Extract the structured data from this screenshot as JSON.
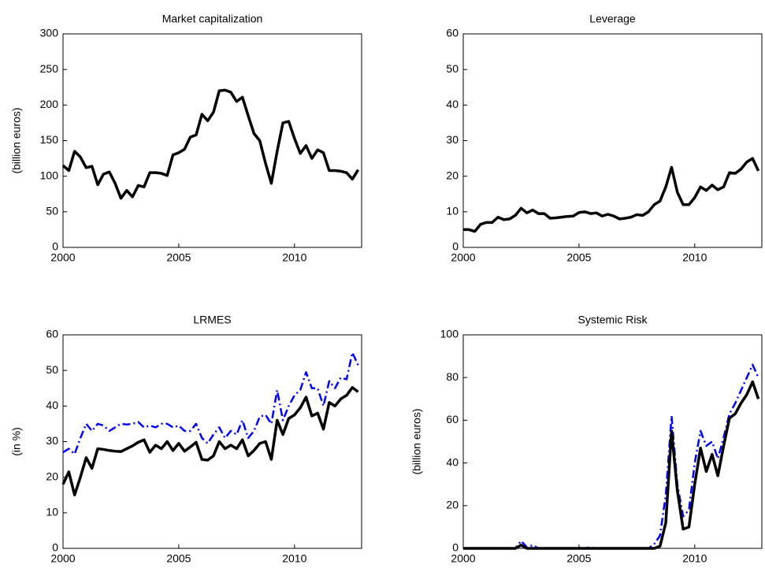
{
  "chart_data": [
    {
      "type": "line",
      "title": "Market capitalization",
      "ylabel": "(billion euros)",
      "x": [
        2000,
        2000.25,
        2000.5,
        2000.75,
        2001,
        2001.25,
        2001.5,
        2001.75,
        2002,
        2002.25,
        2002.5,
        2002.75,
        2003,
        2003.25,
        2003.5,
        2003.75,
        2004,
        2004.25,
        2004.5,
        2004.75,
        2005,
        2005.25,
        2005.5,
        2005.75,
        2006,
        2006.25,
        2006.5,
        2006.75,
        2007,
        2007.25,
        2007.5,
        2007.75,
        2008,
        2008.25,
        2008.5,
        2008.75,
        2009,
        2009.25,
        2009.5,
        2009.75,
        2010,
        2010.25,
        2010.5,
        2010.75,
        2011,
        2011.25,
        2011.5,
        2011.75,
        2012,
        2012.25,
        2012.5,
        2012.75
      ],
      "values": [
        115,
        108,
        135,
        127,
        112,
        114,
        88,
        103,
        106,
        90,
        69,
        80,
        71,
        87,
        85,
        105,
        105,
        104,
        101,
        130,
        133,
        138,
        155,
        158,
        187,
        178,
        190,
        220,
        221,
        218,
        205,
        211,
        185,
        160,
        150,
        118,
        90,
        135,
        175,
        177,
        153,
        132,
        143,
        125,
        137,
        133,
        108,
        108,
        107,
        105,
        96,
        109
      ],
      "color": "#000000",
      "xlim": [
        2000,
        2012.9
      ],
      "ylim": [
        0,
        300
      ],
      "xticks": [
        2000,
        2005,
        2010
      ],
      "yticks": [
        0,
        50,
        100,
        150,
        200,
        250,
        300
      ]
    },
    {
      "type": "line",
      "title": "Leverage",
      "x": [
        2000,
        2000.25,
        2000.5,
        2000.75,
        2001,
        2001.25,
        2001.5,
        2001.75,
        2002,
        2002.25,
        2002.5,
        2002.75,
        2003,
        2003.25,
        2003.5,
        2003.75,
        2004,
        2004.25,
        2004.5,
        2004.75,
        2005,
        2005.25,
        2005.5,
        2005.75,
        2006,
        2006.25,
        2006.5,
        2006.75,
        2007,
        2007.25,
        2007.5,
        2007.75,
        2008,
        2008.25,
        2008.5,
        2008.75,
        2009,
        2009.25,
        2009.5,
        2009.75,
        2010,
        2010.25,
        2010.5,
        2010.75,
        2011,
        2011.25,
        2011.5,
        2011.75,
        2012,
        2012.25,
        2012.5,
        2012.75
      ],
      "values": [
        5,
        5,
        4.5,
        6.5,
        7,
        7,
        8.5,
        7.8,
        8,
        9,
        11,
        9.7,
        10.5,
        9.5,
        9.5,
        8.2,
        8.3,
        8.5,
        8.7,
        8.8,
        9.8,
        10,
        9.5,
        9.7,
        8.8,
        9.3,
        8.8,
        8,
        8.2,
        8.5,
        9.2,
        9,
        10,
        12,
        13,
        17,
        22.5,
        15.5,
        12,
        12,
        14,
        17,
        16,
        17.5,
        16.2,
        17,
        21,
        20.8,
        22,
        24,
        25,
        21.5
      ],
      "color": "#000000",
      "xlim": [
        2000,
        2012.9
      ],
      "ylim": [
        0,
        60
      ],
      "xticks": [
        2000,
        2005,
        2010
      ],
      "yticks": [
        0,
        10,
        20,
        30,
        40,
        50,
        60
      ]
    },
    {
      "type": "line",
      "title": "LRMES",
      "ylabel": "(in %)",
      "x": [
        2000,
        2000.25,
        2000.5,
        2000.75,
        2001,
        2001.25,
        2001.5,
        2001.75,
        2002,
        2002.25,
        2002.5,
        2002.75,
        2003,
        2003.25,
        2003.5,
        2003.75,
        2004,
        2004.25,
        2004.5,
        2004.75,
        2005,
        2005.25,
        2005.5,
        2005.75,
        2006,
        2006.25,
        2006.5,
        2006.75,
        2007,
        2007.25,
        2007.5,
        2007.75,
        2008,
        2008.25,
        2008.5,
        2008.75,
        2009,
        2009.25,
        2009.5,
        2009.75,
        2010,
        2010.25,
        2010.5,
        2010.75,
        2011,
        2011.25,
        2011.5,
        2011.75,
        2012,
        2012.25,
        2012.5,
        2012.75
      ],
      "series": [
        {
          "color": "#000000",
          "dash": "solid",
          "values": [
            18,
            21.5,
            15,
            20,
            25.5,
            22.5,
            28,
            27.8,
            27.5,
            27.3,
            27.2,
            28,
            28.8,
            29.8,
            30.5,
            27,
            29,
            28,
            30,
            27.5,
            29.5,
            27.3,
            28.5,
            29.8,
            25,
            24.8,
            26,
            30,
            28,
            29,
            28,
            30.5,
            26,
            27.5,
            29.5,
            30,
            25,
            36,
            32,
            36.5,
            37.5,
            39.5,
            42.5,
            37.2,
            38,
            33.5,
            41,
            40,
            42,
            43,
            45.2,
            44
          ]
        },
        {
          "color": "#0000ff",
          "dash": "dashdot",
          "values": [
            27,
            28,
            26.5,
            31,
            35,
            33,
            35,
            34.5,
            33,
            34,
            35,
            34.8,
            35,
            35.5,
            34,
            34.5,
            34,
            35,
            35,
            34,
            34.5,
            33,
            33,
            35,
            31,
            29.5,
            32,
            34,
            31,
            33,
            32,
            36,
            31,
            33,
            37,
            37.5,
            35,
            44.5,
            36,
            40,
            43,
            44.5,
            49.5,
            45,
            45,
            40,
            47,
            45,
            48,
            47.5,
            55,
            51.5
          ]
        }
      ],
      "xlim": [
        2000,
        2012.9
      ],
      "ylim": [
        0,
        60
      ],
      "xticks": [
        2000,
        2005,
        2010
      ],
      "yticks": [
        0,
        10,
        20,
        30,
        40,
        50,
        60
      ]
    },
    {
      "type": "line",
      "title": "Systemic Risk",
      "ylabel": "(billion euros)",
      "x": [
        2000,
        2000.25,
        2000.5,
        2000.75,
        2001,
        2001.25,
        2001.5,
        2001.75,
        2002,
        2002.25,
        2002.5,
        2002.75,
        2003,
        2003.25,
        2003.5,
        2003.75,
        2004,
        2004.25,
        2004.5,
        2004.75,
        2005,
        2005.25,
        2005.5,
        2005.75,
        2006,
        2006.25,
        2006.5,
        2006.75,
        2007,
        2007.25,
        2007.5,
        2007.75,
        2008,
        2008.25,
        2008.5,
        2008.75,
        2009,
        2009.25,
        2009.5,
        2009.75,
        2010,
        2010.25,
        2010.5,
        2010.75,
        2011,
        2011.25,
        2011.5,
        2011.75,
        2012,
        2012.25,
        2012.5,
        2012.75
      ],
      "series": [
        {
          "color": "#000000",
          "dash": "solid",
          "values": [
            0,
            0,
            0,
            0,
            0,
            0,
            0,
            0,
            0,
            0,
            1.5,
            0,
            0,
            0,
            0,
            0,
            0,
            0,
            0,
            0,
            0,
            0,
            0,
            0,
            0,
            0,
            0,
            0,
            0,
            0,
            0,
            0,
            0,
            0,
            1,
            12,
            55,
            27,
            9,
            10,
            30,
            47,
            36,
            44,
            34,
            48,
            61,
            63,
            68,
            72,
            78,
            70
          ]
        },
        {
          "color": "#0000ff",
          "dash": "dashdot",
          "values": [
            0,
            0,
            0,
            0,
            0,
            0,
            0,
            0,
            0,
            0,
            3.5,
            0.5,
            1.5,
            0,
            0,
            0,
            0,
            0,
            0,
            0,
            0,
            0,
            0.5,
            0,
            0,
            0,
            0,
            0,
            0,
            0,
            0,
            0,
            0,
            2,
            6,
            25,
            62,
            30,
            15,
            18,
            40,
            55,
            48,
            50,
            42,
            52,
            63,
            68,
            74,
            80,
            86,
            80
          ]
        }
      ],
      "xlim": [
        2000,
        2012.9
      ],
      "ylim": [
        0,
        100
      ],
      "xticks": [
        2000,
        2005,
        2010
      ],
      "yticks": [
        0,
        20,
        40,
        60,
        80,
        100
      ]
    }
  ]
}
